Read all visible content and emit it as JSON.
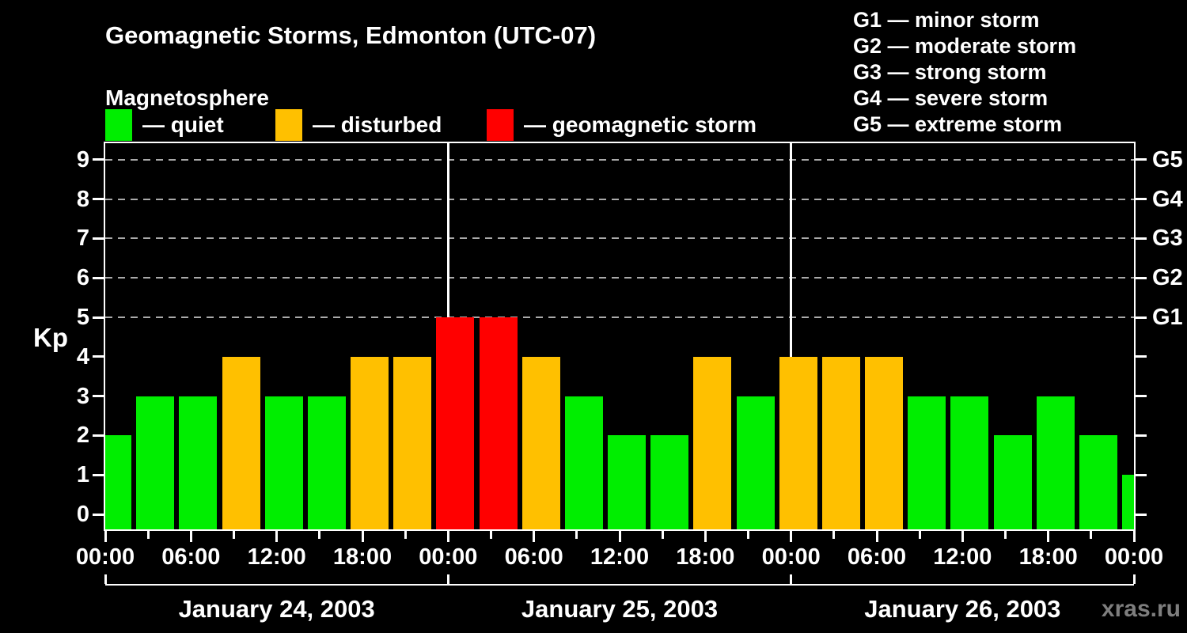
{
  "chart_data": {
    "type": "bar",
    "title": "Geomagnetic Storms, Edmonton (UTC-07)",
    "subtitle": "Magnetosphere",
    "ylabel": "Kp",
    "ylim": [
      0,
      9
    ],
    "y_ticks": [
      0,
      1,
      2,
      3,
      4,
      5,
      6,
      7,
      8,
      9
    ],
    "grid_levels": [
      5,
      6,
      7,
      8,
      9
    ],
    "x_tick_interval_hours": 3,
    "bars_per_day": 8,
    "x_time_labels": [
      "00:00",
      "06:00",
      "12:00",
      "18:00",
      "00:00",
      "06:00",
      "12:00",
      "18:00",
      "00:00",
      "06:00",
      "12:00",
      "18:00",
      "00:00"
    ],
    "dates": [
      "January 24, 2003",
      "January 25, 2003",
      "January 26, 2003"
    ],
    "kp_values": [
      2,
      3,
      3,
      4,
      3,
      3,
      4,
      4,
      5,
      5,
      4,
      3,
      2,
      2,
      4,
      3,
      4,
      4,
      4,
      3,
      3,
      2,
      3,
      2,
      1
    ],
    "right_axis_labels": [
      {
        "kp": 5,
        "label": "G1"
      },
      {
        "kp": 6,
        "label": "G2"
      },
      {
        "kp": 7,
        "label": "G3"
      },
      {
        "kp": 8,
        "label": "G4"
      },
      {
        "kp": 9,
        "label": "G5"
      }
    ],
    "legend": [
      {
        "key": "quiet",
        "label": "— quiet",
        "color": "#00ee00"
      },
      {
        "key": "disturbed",
        "label": "— disturbed",
        "color": "#ffc000"
      },
      {
        "key": "storm",
        "label": "— geomagnetic storm",
        "color": "#ff0000"
      }
    ],
    "color_thresholds": {
      "disturbed_min_kp": 4,
      "storm_min_kp": 5
    },
    "g_scale_legend": [
      "G1 — minor storm",
      "G2 — moderate storm",
      "G3 — strong storm",
      "G4 — severe storm",
      "G5 — extreme storm"
    ],
    "watermark": "xras.ru",
    "colors": {
      "background": "#000000",
      "axis": "#ffffff",
      "grid": "#aaaaaa",
      "text": "#ffffff",
      "watermark": "#7e7e7e"
    }
  }
}
